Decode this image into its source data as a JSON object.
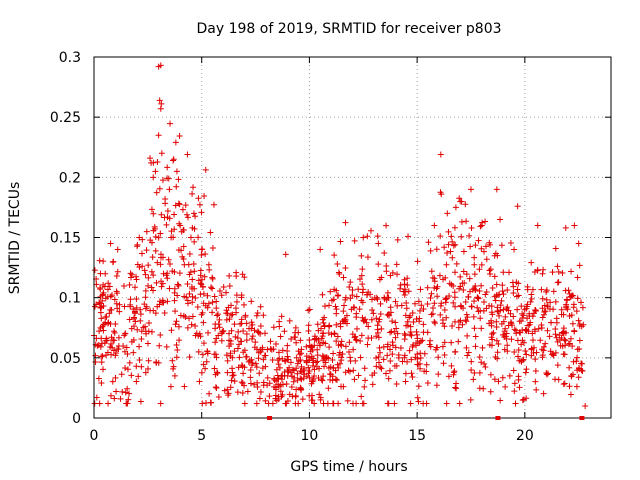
{
  "chart_data": {
    "type": "scatter",
    "title": "Day 198 of 2019, SRMTID for receiver p803",
    "xlabel": "GPS time / hours",
    "ylabel": "SRMTID / TECUs",
    "xlim": [
      0,
      24
    ],
    "ylim": [
      0,
      0.3
    ],
    "xticks": [
      0,
      5,
      10,
      15,
      20
    ],
    "yticks": [
      0,
      0.05,
      0.1,
      0.15,
      0.2,
      0.25,
      0.3
    ],
    "xtick_labels": [
      "0",
      "5",
      "10",
      "15",
      "20"
    ],
    "ytick_labels": [
      "0",
      "0.05",
      "0.1",
      "0.15",
      "0.2",
      "0.25",
      "0.3"
    ],
    "grid": true,
    "marker": "+",
    "color": "#e00000",
    "series": [
      {
        "name": "SRMTID",
        "trend": [
          [
            0,
            0.07
          ],
          [
            0.5,
            0.075
          ],
          [
            1,
            0.07
          ],
          [
            1.5,
            0.065
          ],
          [
            2,
            0.085
          ],
          [
            2.5,
            0.1
          ],
          [
            3,
            0.125
          ],
          [
            3.5,
            0.14
          ],
          [
            4,
            0.12
          ],
          [
            4.5,
            0.105
          ],
          [
            5,
            0.095
          ],
          [
            5.5,
            0.085
          ],
          [
            6,
            0.075
          ],
          [
            6.5,
            0.065
          ],
          [
            7,
            0.06
          ],
          [
            7.5,
            0.05
          ],
          [
            8,
            0.045
          ],
          [
            8.5,
            0.04
          ],
          [
            9,
            0.038
          ],
          [
            9.5,
            0.04
          ],
          [
            10,
            0.045
          ],
          [
            10.5,
            0.05
          ],
          [
            11,
            0.06
          ],
          [
            11.5,
            0.07
          ],
          [
            12,
            0.075
          ],
          [
            12.5,
            0.08
          ],
          [
            13,
            0.078
          ],
          [
            13.5,
            0.075
          ],
          [
            14,
            0.072
          ],
          [
            14.5,
            0.07
          ],
          [
            15,
            0.072
          ],
          [
            15.5,
            0.085
          ],
          [
            16,
            0.1
          ],
          [
            16.5,
            0.11
          ],
          [
            17,
            0.1
          ],
          [
            17.5,
            0.09
          ],
          [
            18,
            0.085
          ],
          [
            18.5,
            0.08
          ],
          [
            19,
            0.075
          ],
          [
            19.5,
            0.07
          ],
          [
            20,
            0.068
          ],
          [
            20.5,
            0.07
          ],
          [
            21,
            0.072
          ],
          [
            21.5,
            0.075
          ],
          [
            22,
            0.075
          ],
          [
            22.5,
            0.07
          ],
          [
            22.75,
            0.065
          ]
        ],
        "spikes": [
          [
            3.0,
            0.292
          ],
          [
            3.1,
            0.293
          ],
          [
            3.05,
            0.264
          ],
          [
            3.1,
            0.257
          ],
          [
            3.0,
            0.235
          ],
          [
            2.6,
            0.216
          ],
          [
            2.65,
            0.212
          ],
          [
            2.75,
            0.2
          ],
          [
            2.85,
            0.205
          ],
          [
            3.15,
            0.22
          ],
          [
            3.7,
            0.215
          ],
          [
            3.8,
            0.229
          ],
          [
            3.85,
            0.205
          ],
          [
            3.5,
            0.19
          ],
          [
            3.3,
            0.182
          ],
          [
            4.0,
            0.16
          ],
          [
            16.1,
            0.219
          ],
          [
            16.8,
            0.175
          ],
          [
            17.0,
            0.18
          ],
          [
            17.5,
            0.19
          ],
          [
            18.0,
            0.16
          ],
          [
            18.7,
            0.19
          ],
          [
            18.85,
            0.165
          ],
          [
            19.5,
            0.14
          ],
          [
            20.6,
            0.16
          ],
          [
            21.9,
            0.158
          ],
          [
            22.3,
            0.16
          ],
          [
            22.5,
            0.145
          ],
          [
            8.9,
            0.136
          ],
          [
            10.5,
            0.14
          ],
          [
            12.5,
            0.15
          ],
          [
            13.2,
            0.145
          ],
          [
            14.1,
            0.148
          ],
          [
            1.1,
            0.14
          ],
          [
            0.3,
            0.12
          ],
          [
            0.9,
            0.13
          ],
          [
            5.0,
            0.14
          ],
          [
            4.5,
            0.15
          ],
          [
            2.1,
            0.15
          ],
          [
            15.8,
            0.16
          ],
          [
            16.4,
            0.17
          ],
          [
            22.8,
            0.01
          ]
        ],
        "counts_per_hour": 70
      }
    ],
    "axis_markers_x": [
      8.15,
      18.75,
      22.65
    ]
  }
}
